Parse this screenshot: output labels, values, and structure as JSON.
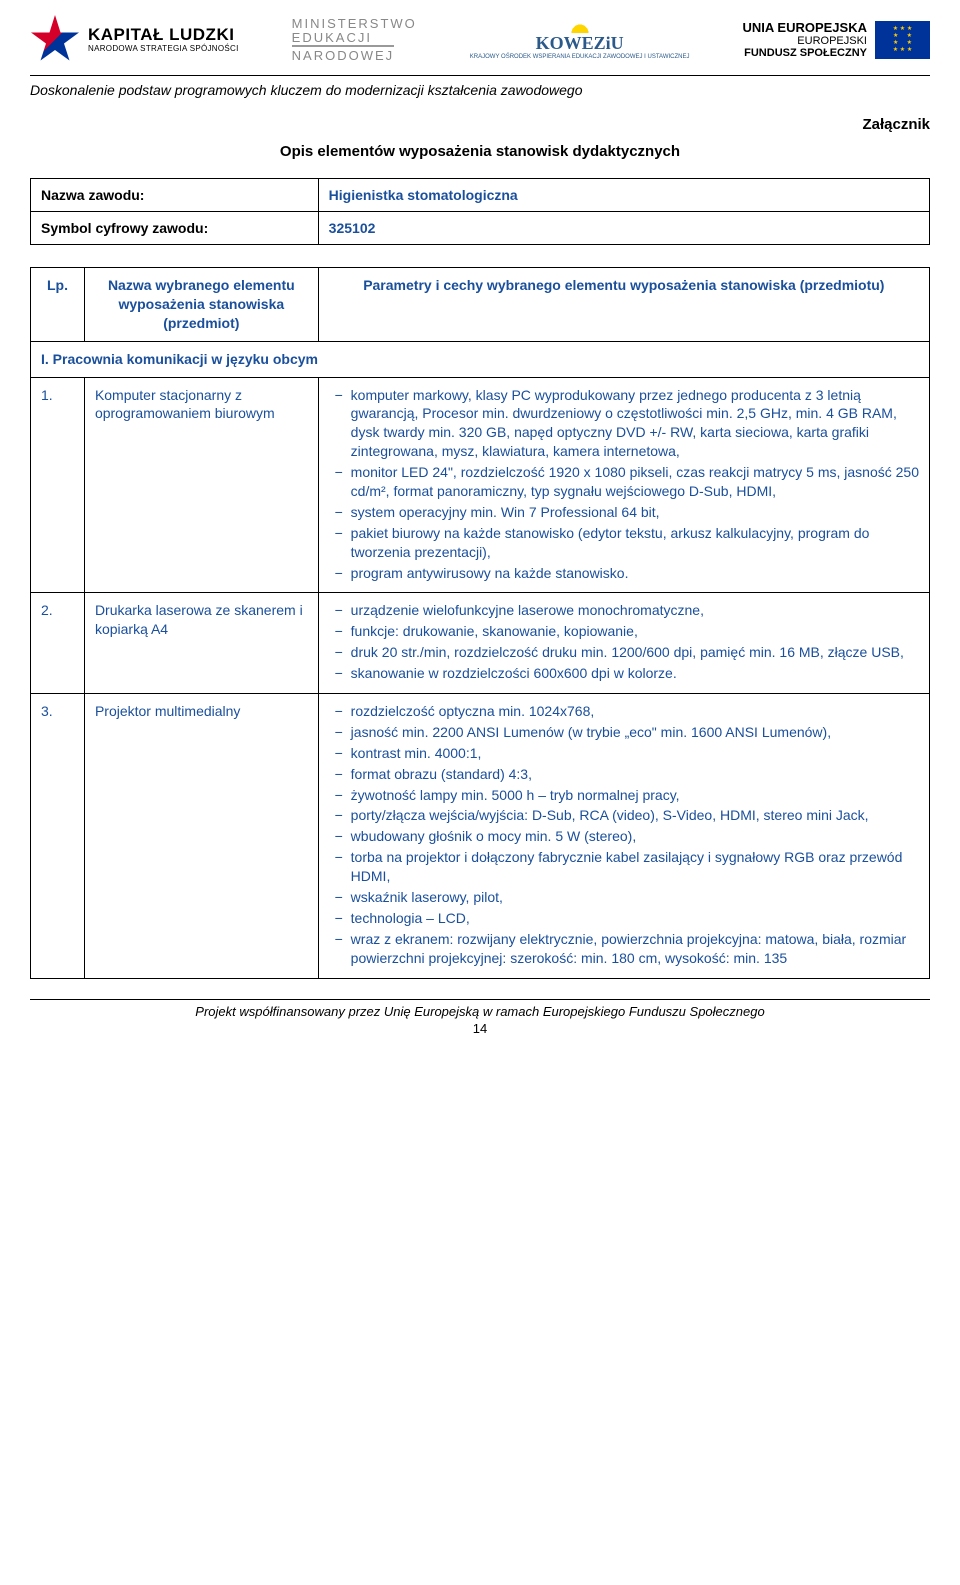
{
  "logos": {
    "kl_main": "KAPITAŁ LUDZKI",
    "kl_sub": "NARODOWA STRATEGIA SPÓJNOŚCI",
    "men_l1": "MINISTERSTWO",
    "men_l2": "EDUKACJI",
    "men_l3": "NARODOWEJ",
    "koweziu_top": "KOWEZiU",
    "koweziu_sub": "KRAJOWY OŚRODEK WSPIERANIA EDUKACJI ZAWODOWEJ I USTAWICZNEJ",
    "ue_l1": "UNIA EUROPEJSKA",
    "ue_l2": "EUROPEJSKI",
    "ue_l3": "FUNDUSZ SPOŁECZNY"
  },
  "subtitle": "Doskonalenie podstaw programowych kluczem do modernizacji kształcenia zawodowego",
  "annex": "Załącznik",
  "section_title": "Opis elementów wyposażenia stanowisk dydaktycznych",
  "meta_rows": [
    {
      "label": "Nazwa zawodu:",
      "value": "Higienistka stomatologiczna"
    },
    {
      "label": "Symbol cyfrowy zawodu:",
      "value": "325102"
    }
  ],
  "main_header": {
    "num": "Lp.",
    "name": "Nazwa wybranego elementu wyposażenia stanowiska (przedmiot)",
    "params": "Parametry i cechy wybranego elementu wyposażenia stanowiska (przedmiotu)"
  },
  "section_row": "I.   Pracownia komunikacji w języku obcym",
  "rows": [
    {
      "num": "1.",
      "name": "Komputer stacjonarny z oprogramowaniem biurowym",
      "params": [
        "komputer markowy, klasy PC wyprodukowany przez jednego producenta z 3 letnią gwarancją, Procesor min. dwurdzeniowy o częstotliwości min. 2,5 GHz, min. 4 GB RAM, dysk twardy min. 320 GB, napęd optyczny DVD +/- RW, karta sieciowa, karta grafiki zintegrowana, mysz, klawiatura, kamera internetowa,",
        "monitor LED 24\", rozdzielczość 1920 x 1080 pikseli, czas reakcji matrycy 5 ms, jasność 250 cd/m², format panoramiczny, typ sygnału wejściowego D-Sub, HDMI,",
        "system operacyjny min. Win 7 Professional 64 bit,",
        "pakiet biurowy na każde stanowisko (edytor tekstu, arkusz kalkulacyjny, program do tworzenia prezentacji),",
        "program antywirusowy na każde stanowisko."
      ]
    },
    {
      "num": "2.",
      "name": "Drukarka laserowa ze skanerem i kopiarką A4",
      "params": [
        "urządzenie wielofunkcyjne laserowe monochromatyczne,",
        "funkcje: drukowanie, skanowanie, kopiowanie,",
        "druk 20 str./min, rozdzielczość druku min. 1200/600 dpi, pamięć min. 16 MB, złącze USB,",
        "skanowanie w rozdzielczości 600x600 dpi w kolorze."
      ]
    },
    {
      "num": "3.",
      "name": "Projektor multimedialny",
      "params": [
        "rozdzielczość optyczna min. 1024x768,",
        "jasność min. 2200 ANSI Lumenów (w trybie „eco\" min. 1600 ANSI Lumenów),",
        "kontrast min. 4000:1,",
        "format obrazu (standard) 4:3,",
        "żywotność lampy min. 5000 h – tryb normalnej pracy,",
        "porty/złącza wejścia/wyjścia: D-Sub, RCA (video), S-Video, HDMI, stereo mini Jack,",
        "wbudowany głośnik o mocy min. 5 W (stereo),",
        "torba na projektor i dołączony fabrycznie kabel zasilający i sygnałowy RGB oraz przewód HDMI,",
        "wskaźnik laserowy, pilot,",
        "technologia – LCD,",
        "wraz z ekranem: rozwijany elektrycznie, powierzchnia projekcyjna: matowa, biała, rozmiar powierzchni projekcyjnej: szerokość: min. 180 cm, wysokość: min. 135"
      ]
    }
  ],
  "footer_text": "Projekt współfinansowany przez Unię Europejską w ramach Europejskiego Funduszu Społecznego",
  "page_num": "14"
}
